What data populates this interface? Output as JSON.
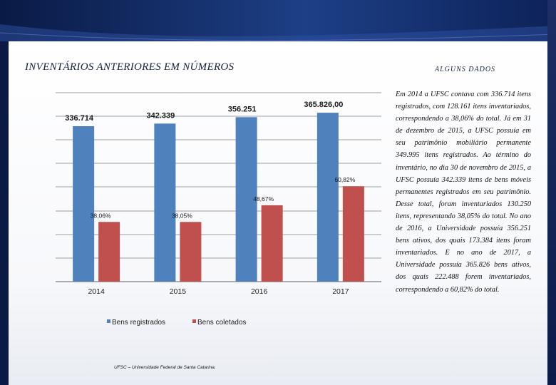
{
  "slide": {
    "title": "INVENTÁRIOS ANTERIORES EM NÚMEROS",
    "side_heading": "ALGUNS DADOS",
    "side_text": "Em 2014 a UFSC contava com 336.714 itens registrados, com 128.161 itens inventariados, correspondendo a 38,06% do total. Já em 31 de dezembro de 2015, a UFSC possuía em seu patrimônio mobiliário permanente 349.995 itens registrados. Ao término do inventário, no dia 30 de novembro de 2015, a UFSC possuía 342.339 itens de bens móveis permanentes registrados em seu patrimônio. Desse total, foram inventariados 130.250 itens, representando 38,05% do total. No ano de 2016, a Universidade possuía 356.251 bens ativos, dos quais 173.384 itens foram inventariados. E no ano de 2017, a Universidade possuía 365.826 bens ativos, dos quais 222.488 forem inventariados, correspondendo a 60,82% do total.",
    "footer": "UFSC – Universidade Federal de Santa Catarina.",
    "colors": {
      "registrados": "#4f81bd",
      "coletados": "#c0504d",
      "grid": "#7f7f7f"
    }
  },
  "chart_data": {
    "type": "bar",
    "categories": [
      "2014",
      "2015",
      "2016",
      "2017"
    ],
    "series": [
      {
        "name": "Bens registrados",
        "values": [
          336714,
          342339,
          356251,
          365826
        ],
        "labels": [
          "336.714",
          "342.339",
          "356.251",
          "365.826,00"
        ]
      },
      {
        "name": "Bens coletados",
        "values": [
          128161,
          130250,
          173384,
          222488
        ],
        "labels": [
          "38,06%",
          "38,05%",
          "48,67%",
          "60,82%"
        ]
      }
    ],
    "legend": [
      "Bens registrados",
      "Bens coletados"
    ],
    "legend_position": "bottom",
    "grid": true,
    "title": "",
    "xlabel": "",
    "ylabel": ""
  }
}
